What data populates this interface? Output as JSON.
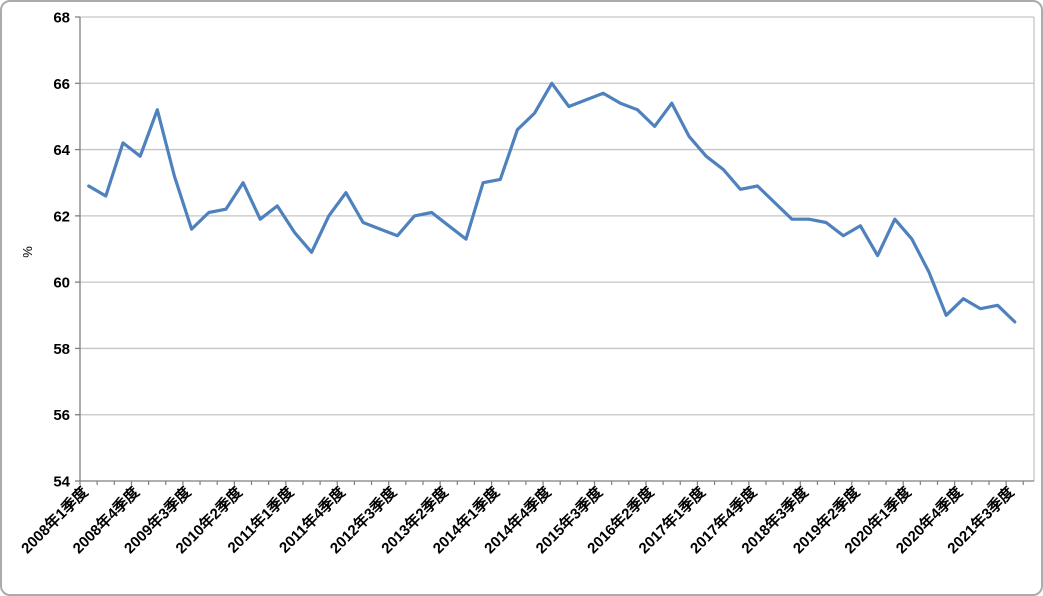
{
  "chart_data": {
    "type": "line",
    "title": "",
    "xlabel": "",
    "ylabel": "%",
    "legend_position": "none",
    "grid": true,
    "ylim": [
      54,
      68
    ],
    "y_ticks": [
      54,
      56,
      58,
      60,
      62,
      64,
      66,
      68
    ],
    "x_tick_label_every": 3,
    "line_color": "#4F81BD",
    "gridline_color": "#c6c6c6",
    "axis_color": "#7f7f7f",
    "x": [
      "2008年1季度",
      "2008年2季度",
      "2008年3季度",
      "2008年4季度",
      "2009年1季度",
      "2009年2季度",
      "2009年3季度",
      "2009年4季度",
      "2010年1季度",
      "2010年2季度",
      "2010年3季度",
      "2010年4季度",
      "2011年1季度",
      "2011年2季度",
      "2011年3季度",
      "2011年4季度",
      "2012年1季度",
      "2012年2季度",
      "2012年3季度",
      "2012年4季度",
      "2013年1季度",
      "2013年2季度",
      "2013年3季度",
      "2013年4季度",
      "2014年1季度",
      "2014年2季度",
      "2014年3季度",
      "2014年4季度",
      "2015年1季度",
      "2015年2季度",
      "2015年3季度",
      "2015年4季度",
      "2016年1季度",
      "2016年2季度",
      "2016年3季度",
      "2016年4季度",
      "2017年1季度",
      "2017年2季度",
      "2017年3季度",
      "2017年4季度",
      "2018年1季度",
      "2018年2季度",
      "2018年3季度",
      "2018年4季度",
      "2019年1季度",
      "2019年2季度",
      "2019年3季度",
      "2019年4季度",
      "2020年1季度",
      "2020年2季度",
      "2020年3季度",
      "2020年4季度",
      "2021年1季度",
      "2021年2季度",
      "2021年3季度"
    ],
    "values": [
      62.9,
      62.6,
      64.2,
      63.8,
      65.2,
      63.2,
      61.6,
      62.1,
      62.2,
      63.0,
      61.9,
      62.3,
      61.5,
      60.9,
      62.0,
      62.7,
      61.8,
      61.6,
      61.4,
      62.0,
      62.1,
      61.7,
      61.3,
      63.0,
      63.1,
      64.6,
      65.1,
      66.0,
      65.3,
      65.5,
      65.7,
      65.4,
      65.2,
      64.7,
      65.4,
      64.4,
      63.8,
      63.4,
      62.8,
      62.9,
      62.4,
      61.9,
      61.9,
      61.8,
      61.4,
      61.7,
      60.8,
      61.9,
      61.3,
      60.3,
      59.0,
      59.5,
      59.2,
      59.3,
      58.8
    ]
  }
}
